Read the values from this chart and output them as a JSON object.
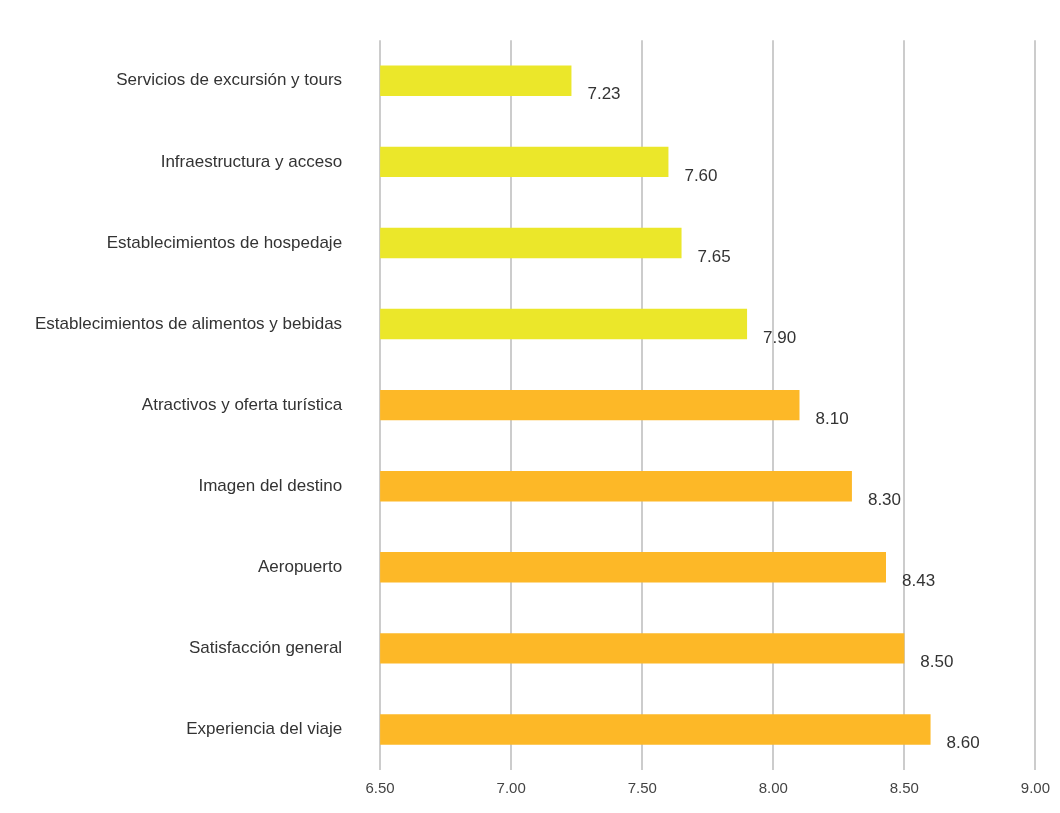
{
  "chart_data": {
    "type": "bar",
    "orientation": "horizontal",
    "categories": [
      "Servicios de excursión y tours",
      "Infraestructura y acceso",
      "Establecimientos de hospedaje",
      "Establecimientos de alimentos y bebidas",
      "Atractivos y oferta turística",
      "Imagen del destino",
      "Aeropuerto",
      "Satisfacción general",
      "Experiencia del viaje"
    ],
    "values": [
      7.23,
      7.6,
      7.65,
      7.9,
      8.1,
      8.3,
      8.43,
      8.5,
      8.6
    ],
    "colors": [
      "#ebe72a",
      "#ebe72a",
      "#ebe72a",
      "#ebe72a",
      "#fdb827",
      "#fdb827",
      "#fdb827",
      "#fdb827",
      "#fdb827"
    ],
    "value_labels": [
      "7.23",
      "7.60",
      "7.65",
      "7.90",
      "8.10",
      "8.30",
      "8.43",
      "8.50",
      "8.60"
    ],
    "xlim": [
      6.5,
      9.0
    ],
    "xticks": [
      {
        "value": 6.5,
        "label": "6.50"
      },
      {
        "value": 7.0,
        "label": "7.00"
      },
      {
        "value": 7.5,
        "label": "7.50"
      },
      {
        "value": 8.0,
        "label": "8.00"
      },
      {
        "value": 8.5,
        "label": "8.50"
      },
      {
        "value": 9.0,
        "label": "9.00"
      }
    ],
    "grid": "x",
    "legend": false
  }
}
